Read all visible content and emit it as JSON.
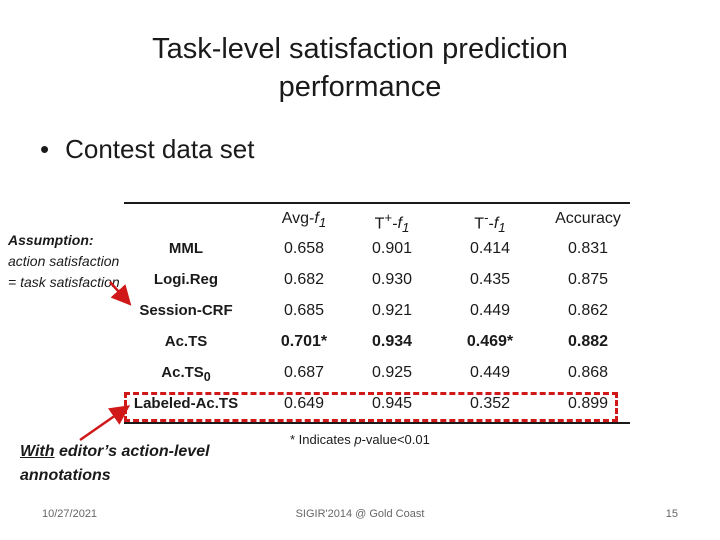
{
  "slide": {
    "title_line1": "Task-level satisfaction prediction",
    "title_line2": "performance",
    "bullet": "Contest data set",
    "assumption": {
      "bold": "Assumption:",
      "text": "action satisfaction = task satisfaction"
    },
    "editor_note": {
      "underlined": "With",
      "rest": " editor’s action-level annotations"
    },
    "pvalue_note": "* Indicates p-value<0.01",
    "footer": {
      "date": "10/27/2021",
      "venue": "SIGIR'2014 @ Gold Coast",
      "page": "15"
    },
    "accent_color": "#d01818"
  },
  "table": {
    "columns": [
      "Avg-f1",
      "T+-f1",
      "T−-f1",
      "Accuracy"
    ],
    "rows": [
      {
        "label": "MML",
        "values": [
          "0.658",
          "0.901",
          "0.414",
          "0.831"
        ],
        "bold": [
          false,
          false,
          false,
          false
        ]
      },
      {
        "label": "Logi.Reg",
        "values": [
          "0.682",
          "0.930",
          "0.435",
          "0.875"
        ],
        "bold": [
          false,
          false,
          false,
          false
        ]
      },
      {
        "label": "Session-CRF",
        "values": [
          "0.685",
          "0.921",
          "0.449",
          "0.862"
        ],
        "bold": [
          false,
          false,
          false,
          false
        ]
      },
      {
        "label": "Ac.TS",
        "values": [
          "0.701*",
          "0.934",
          "0.469*",
          "0.882"
        ],
        "bold": [
          true,
          true,
          true,
          true
        ]
      },
      {
        "label": "Ac.TS0",
        "values": [
          "0.687",
          "0.925",
          "0.449",
          "0.868"
        ],
        "bold": [
          false,
          false,
          false,
          false
        ]
      },
      {
        "label": "Labeled-Ac.TS",
        "values": [
          "0.649",
          "0.945",
          "0.352",
          "0.899"
        ],
        "bold": [
          false,
          false,
          false,
          false
        ]
      }
    ]
  }
}
